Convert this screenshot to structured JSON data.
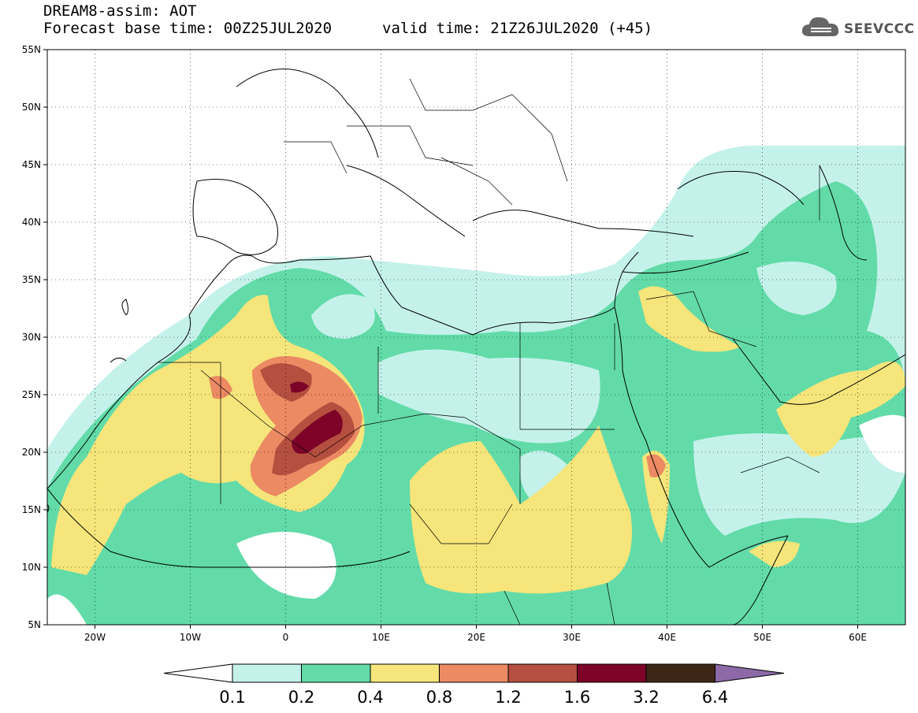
{
  "title": {
    "line1": "DREAM8-assim: AOT",
    "line2": "Forecast base time: 00Z25JUL2020",
    "valid": "valid time: 21Z26JUL2020 (+45)"
  },
  "logo": {
    "text": "SEEVCCC",
    "icon": "cloud-icon"
  },
  "map": {
    "lat_labels": [
      "55N",
      "50N",
      "45N",
      "40N",
      "35N",
      "30N",
      "25N",
      "20N",
      "15N",
      "10N",
      "5N"
    ],
    "lon_labels": [
      "20W",
      "10W",
      "0",
      "10E",
      "20E",
      "30E",
      "40E",
      "50E",
      "60E"
    ],
    "lat_range": [
      5,
      55
    ],
    "lon_range": [
      -25,
      65
    ],
    "grid": true
  },
  "colorbar": {
    "labels": [
      "0.1",
      "0.2",
      "0.4",
      "0.8",
      "1.2",
      "1.6",
      "3.2",
      "6.4"
    ],
    "colors": [
      "#ffffff",
      "#c4f2ea",
      "#62dba9",
      "#f5e57a",
      "#eb8a63",
      "#b54f3f",
      "#7d0428",
      "#3e2617",
      "#8d6aa7"
    ]
  },
  "palette": {
    "c1": "#c4f2ea",
    "c2": "#62dba9",
    "c3": "#f5e57a",
    "c4": "#eb8a63",
    "c5": "#b54f3f",
    "c6": "#7d0428"
  }
}
